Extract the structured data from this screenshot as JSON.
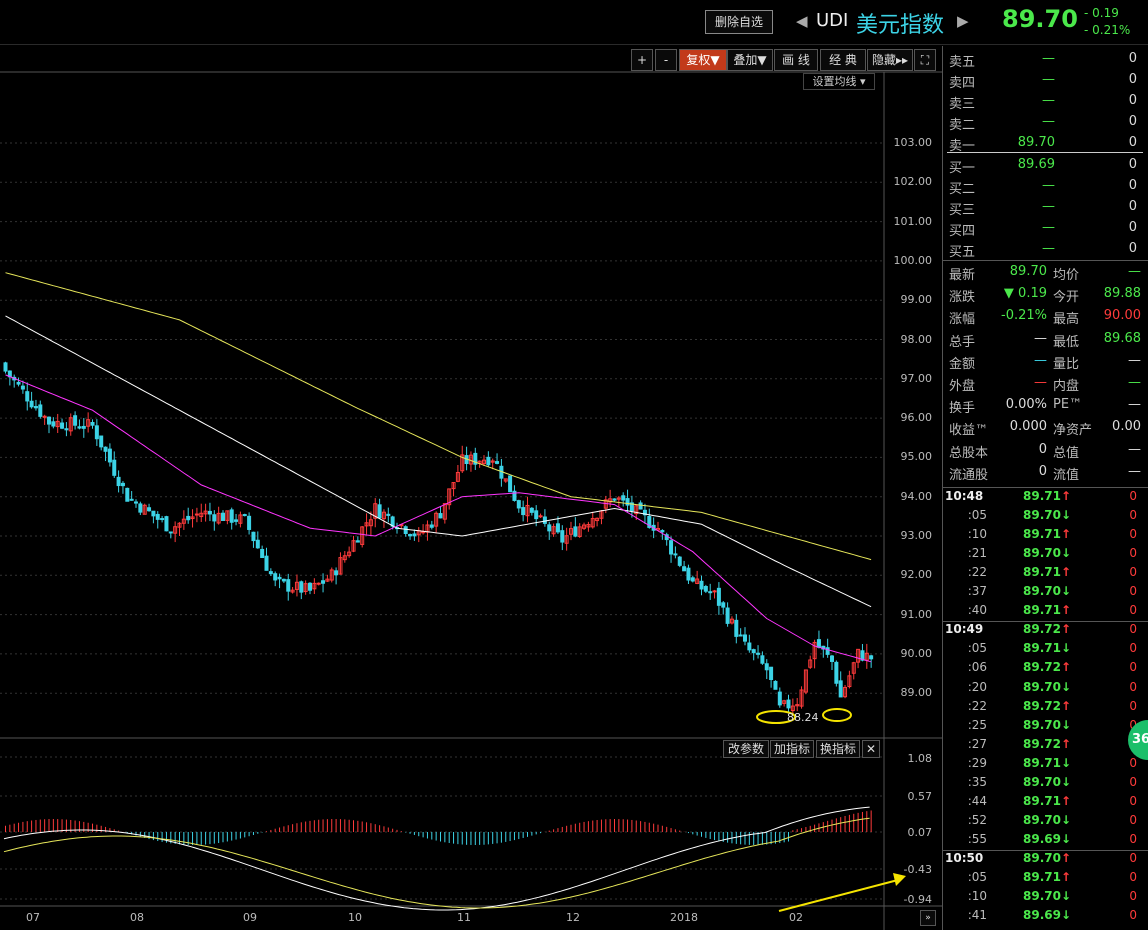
{
  "header": {
    "delete_button": "删除自选",
    "code": "UDI",
    "name": "美元指数",
    "price": "89.70",
    "change": "- 0.19",
    "change_pct": "- 0.21%"
  },
  "toolbar": {
    "plus": "+",
    "minus": "-",
    "fuquan": "复权",
    "overlay": "叠加",
    "draw": "画 线",
    "classic": "经 典",
    "hide": "隐藏",
    "ma_settings": "设置均线"
  },
  "orderbook": {
    "asks": [
      {
        "label": "卖五",
        "price": "—",
        "vol": "0"
      },
      {
        "label": "卖四",
        "price": "—",
        "vol": "0"
      },
      {
        "label": "卖三",
        "price": "—",
        "vol": "0"
      },
      {
        "label": "卖二",
        "price": "—",
        "vol": "0"
      },
      {
        "label": "卖一",
        "price": "89.70",
        "vol": "0"
      }
    ],
    "bids": [
      {
        "label": "买一",
        "price": "89.69",
        "vol": "0"
      },
      {
        "label": "买二",
        "price": "—",
        "vol": "0"
      },
      {
        "label": "买三",
        "price": "—",
        "vol": "0"
      },
      {
        "label": "买四",
        "price": "—",
        "vol": "0"
      },
      {
        "label": "买五",
        "price": "—",
        "vol": "0"
      }
    ]
  },
  "quote": [
    {
      "l1": "最新",
      "v1": "89.70",
      "c1": "grn",
      "l2": "均价",
      "v2": "—",
      "c2": "grn"
    },
    {
      "l1": "涨跌",
      "v1": "▼ 0.19",
      "c1": "grn",
      "l2": "今开",
      "v2": "89.88",
      "c2": "grn"
    },
    {
      "l1": "涨幅",
      "v1": "-0.21%",
      "c1": "grn",
      "l2": "最高",
      "v2": "90.00",
      "c2": "red"
    },
    {
      "l1": "总手",
      "v1": "—",
      "c1": "wht",
      "l2": "最低",
      "v2": "89.68",
      "c2": "grn"
    },
    {
      "l1": "金额",
      "v1": "—",
      "c1": "cyn",
      "l2": "量比",
      "v2": "—",
      "c2": "wht"
    },
    {
      "l1": "外盘",
      "v1": "—",
      "c1": "red",
      "l2": "内盘",
      "v2": "—",
      "c2": "grn"
    },
    {
      "l1": "换手",
      "v1": "0.00%",
      "c1": "wht",
      "l2": "PE™",
      "v2": "—",
      "c2": "wht"
    },
    {
      "l1": "收益™",
      "v1": "0.000",
      "c1": "wht",
      "l2": "净资产",
      "v2": "0.00",
      "c2": "wht"
    },
    {
      "l1": "总股本",
      "v1": "0",
      "c1": "wht",
      "l2": "总值",
      "v2": "—",
      "c2": "wht"
    },
    {
      "l1": "流通股",
      "v1": "0",
      "c1": "wht",
      "l2": "流值",
      "v2": "—",
      "c2": "wht"
    }
  ],
  "ticks": [
    {
      "time": "10:48",
      "price": "89.71",
      "dir": "up",
      "vol": "0",
      "major": true
    },
    {
      "time": ":05",
      "price": "89.70",
      "dir": "down",
      "vol": "0"
    },
    {
      "time": ":10",
      "price": "89.71",
      "dir": "up",
      "vol": "0"
    },
    {
      "time": ":21",
      "price": "89.70",
      "dir": "down",
      "vol": "0"
    },
    {
      "time": ":22",
      "price": "89.71",
      "dir": "up",
      "vol": "0"
    },
    {
      "time": ":37",
      "price": "89.70",
      "dir": "down",
      "vol": "0"
    },
    {
      "time": ":40",
      "price": "89.71",
      "dir": "up",
      "vol": "0"
    },
    {
      "time": "10:49",
      "price": "89.72",
      "dir": "up",
      "vol": "0",
      "major": true
    },
    {
      "time": ":05",
      "price": "89.71",
      "dir": "down",
      "vol": "0"
    },
    {
      "time": ":06",
      "price": "89.72",
      "dir": "up",
      "vol": "0"
    },
    {
      "time": ":20",
      "price": "89.70",
      "dir": "down",
      "vol": "0"
    },
    {
      "time": ":22",
      "price": "89.72",
      "dir": "up",
      "vol": "0"
    },
    {
      "time": ":25",
      "price": "89.70",
      "dir": "down",
      "vol": "0"
    },
    {
      "time": ":27",
      "price": "89.72",
      "dir": "up",
      "vol": "0"
    },
    {
      "time": ":29",
      "price": "89.71",
      "dir": "down",
      "vol": "0"
    },
    {
      "time": ":35",
      "price": "89.70",
      "dir": "down",
      "vol": "0"
    },
    {
      "time": ":44",
      "price": "89.71",
      "dir": "up",
      "vol": "0"
    },
    {
      "time": ":52",
      "price": "89.70",
      "dir": "down",
      "vol": "0"
    },
    {
      "time": ":55",
      "price": "89.69",
      "dir": "down",
      "vol": "0"
    },
    {
      "time": "10:50",
      "price": "89.70",
      "dir": "up",
      "vol": "0",
      "major": true
    },
    {
      "time": ":05",
      "price": "89.71",
      "dir": "up",
      "vol": "0"
    },
    {
      "time": ":10",
      "price": "89.70",
      "dir": "down",
      "vol": "0"
    },
    {
      "time": ":41",
      "price": "89.69",
      "dir": "down",
      "vol": "0"
    }
  ],
  "chart": {
    "price_axis": [
      "103.00",
      "102.00",
      "101.00",
      "100.00",
      "99.00",
      "98.00",
      "97.00",
      "96.00",
      "95.00",
      "94.00",
      "93.00",
      "92.00",
      "91.00",
      "90.00",
      "89.00"
    ],
    "macd_axis": [
      "1.08",
      "0.57",
      "0.07",
      "-0.43",
      "-0.94"
    ],
    "x_labels": [
      "07",
      "08",
      "09",
      "10",
      "11",
      "12",
      "2018",
      "02"
    ],
    "low_marker": "88.24",
    "indicator_buttons": {
      "params": "改参数",
      "add": "加指标",
      "swap": "换指标"
    },
    "badge": "36"
  },
  "colors": {
    "up": "#ff3b3b",
    "down": "#3cd3e6",
    "ma1": "#ff35ff",
    "ma2": "#ffffff",
    "ma3": "#e6e65a",
    "accent_green": "#4be84b"
  }
}
